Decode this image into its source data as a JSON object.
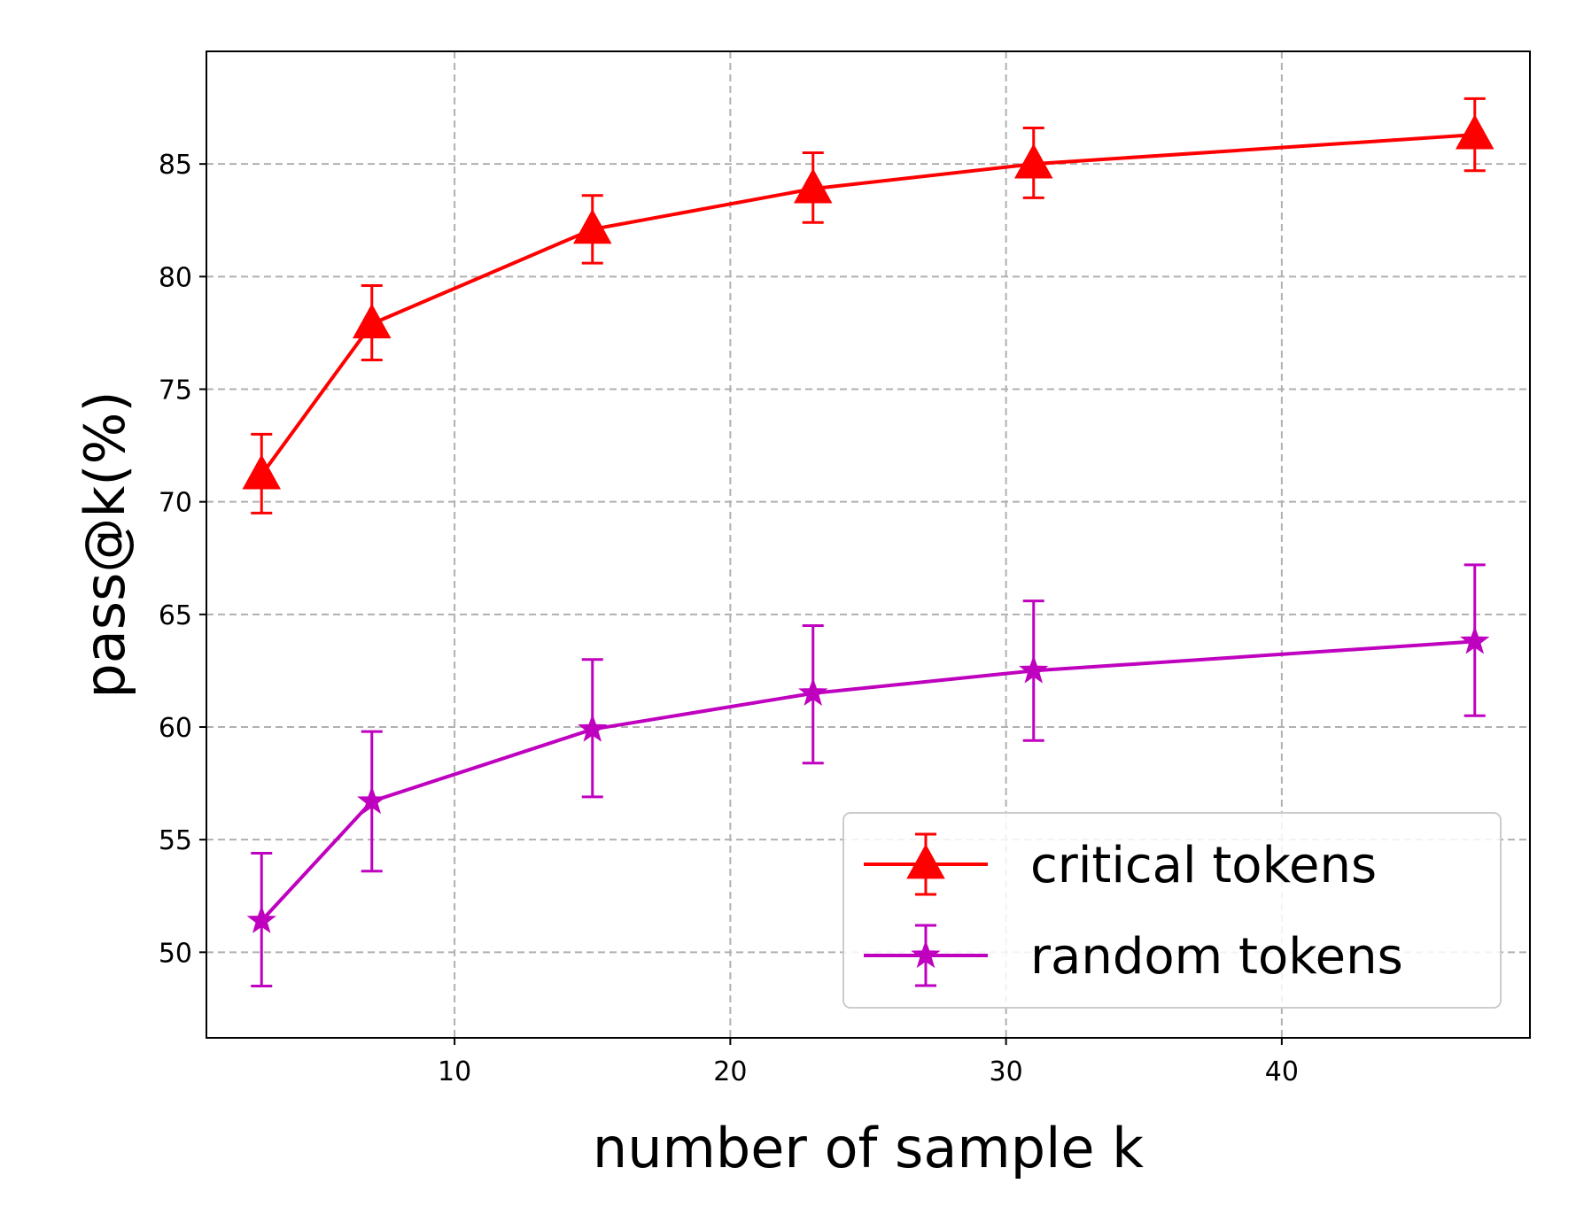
{
  "chart_data": {
    "type": "line",
    "xlabel": "number of sample k",
    "ylabel": "pass@k(%)",
    "xlim": [
      1,
      49
    ],
    "ylim": [
      46.2,
      90.0
    ],
    "x_ticks": [
      10,
      20,
      30,
      40
    ],
    "y_ticks": [
      50,
      55,
      60,
      65,
      70,
      75,
      80,
      85
    ],
    "grid": true,
    "legend_position": "lower-right",
    "x": [
      3,
      7,
      15,
      23,
      31,
      47
    ],
    "series": [
      {
        "name": "critical tokens",
        "color": "#ff0000",
        "marker": "triangle",
        "values": [
          71.2,
          77.9,
          82.1,
          83.9,
          85.0,
          86.3
        ],
        "err_low": [
          69.5,
          76.3,
          80.6,
          82.4,
          83.5,
          84.7
        ],
        "err_high": [
          73.0,
          79.6,
          83.6,
          85.5,
          86.6,
          87.9
        ]
      },
      {
        "name": "random tokens",
        "color": "#bf00bf",
        "marker": "star",
        "values": [
          51.4,
          56.7,
          59.9,
          61.5,
          62.5,
          63.8
        ],
        "err_low": [
          48.5,
          53.6,
          56.9,
          58.4,
          59.4,
          60.5
        ],
        "err_high": [
          54.4,
          59.8,
          63.0,
          64.5,
          65.6,
          67.2
        ]
      }
    ]
  }
}
